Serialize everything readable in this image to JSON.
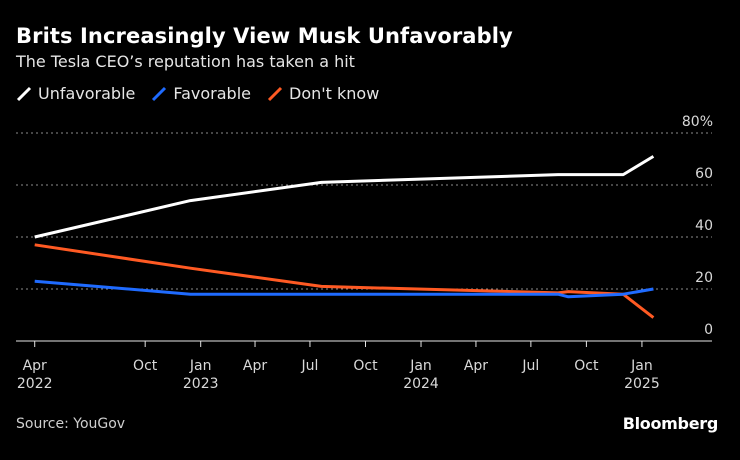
{
  "header": {
    "title": "Brits Increasingly View Musk Unfavorably",
    "subtitle": "The Tesla CEO’s reputation has taken a hit"
  },
  "colors": {
    "background": "#000000",
    "unfavorable": "#ffffff",
    "favorable": "#1f6bff",
    "dont_know": "#ff5a23",
    "grid": "#8c8c8c"
  },
  "footer": {
    "source": "Source: YouGov",
    "brand": "Bloomberg"
  },
  "chart_data": {
    "type": "line",
    "title": "Brits Increasingly View Musk Unfavorably",
    "subtitle": "The Tesla CEO’s reputation has taken a hit",
    "xlabel": "",
    "ylabel": "",
    "ylim": [
      0,
      80
    ],
    "y_ticks": [
      0,
      20,
      40,
      60,
      80
    ],
    "y_tick_labels": [
      "0",
      "20",
      "40",
      "60",
      "80%"
    ],
    "grid": true,
    "legend_position": "top-left",
    "x_ticks": [
      {
        "date": "2022-04-01",
        "label": "Apr",
        "year": "2022"
      },
      {
        "date": "2022-10-01",
        "label": "Oct",
        "year": ""
      },
      {
        "date": "2023-01-01",
        "label": "Jan",
        "year": "2023"
      },
      {
        "date": "2023-04-01",
        "label": "Apr",
        "year": ""
      },
      {
        "date": "2023-07-01",
        "label": "Jul",
        "year": ""
      },
      {
        "date": "2023-10-01",
        "label": "Oct",
        "year": ""
      },
      {
        "date": "2024-01-01",
        "label": "Jan",
        "year": "2024"
      },
      {
        "date": "2024-04-01",
        "label": "Apr",
        "year": ""
      },
      {
        "date": "2024-07-01",
        "label": "Jul",
        "year": ""
      },
      {
        "date": "2024-10-01",
        "label": "Oct",
        "year": ""
      },
      {
        "date": "2025-01-01",
        "label": "Jan",
        "year": "2025"
      }
    ],
    "x_range": [
      "2022-03-01",
      "2025-03-15"
    ],
    "series": [
      {
        "name": "Unfavorable",
        "color": "#ffffff",
        "points": [
          {
            "x": "2022-04-01",
            "y": 40
          },
          {
            "x": "2022-12-15",
            "y": 54
          },
          {
            "x": "2023-07-20",
            "y": 61
          },
          {
            "x": "2024-02-01",
            "y": 62.5
          },
          {
            "x": "2024-08-15",
            "y": 64
          },
          {
            "x": "2024-12-01",
            "y": 64
          },
          {
            "x": "2025-01-20",
            "y": 71
          }
        ]
      },
      {
        "name": "Favorable",
        "color": "#1f6bff",
        "points": [
          {
            "x": "2022-04-01",
            "y": 23
          },
          {
            "x": "2022-12-15",
            "y": 18
          },
          {
            "x": "2024-08-15",
            "y": 18
          },
          {
            "x": "2024-09-01",
            "y": 17
          },
          {
            "x": "2024-12-01",
            "y": 18
          },
          {
            "x": "2025-01-20",
            "y": 20
          }
        ]
      },
      {
        "name": "Don't know",
        "color": "#ff5a23",
        "points": [
          {
            "x": "2022-04-01",
            "y": 37
          },
          {
            "x": "2022-12-15",
            "y": 28
          },
          {
            "x": "2023-07-20",
            "y": 21
          },
          {
            "x": "2024-08-15",
            "y": 18.5
          },
          {
            "x": "2024-09-01",
            "y": 19
          },
          {
            "x": "2024-12-01",
            "y": 18
          },
          {
            "x": "2025-01-20",
            "y": 9
          }
        ]
      }
    ]
  }
}
